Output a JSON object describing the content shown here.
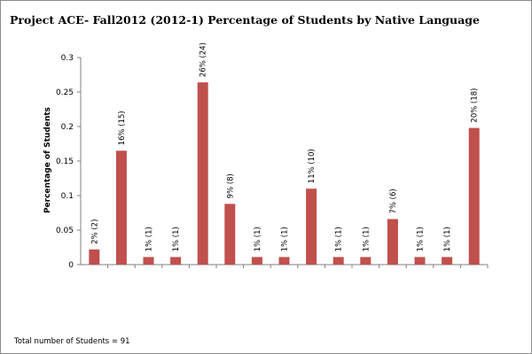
{
  "chart_data": {
    "type": "bar",
    "title": "Project ACE- Fall2012 (2012-1) Percentage of Students by Native Language",
    "xlabel": "",
    "ylabel": "Percentage of Students",
    "ylim": [
      0,
      0.3
    ],
    "yticks": [
      0,
      0.05,
      0.1,
      0.15,
      0.2,
      0.25,
      0.3
    ],
    "ytick_labels": [
      "0",
      "0.05",
      "0.1",
      "0.15",
      "0.2",
      "0.25",
      "0.3"
    ],
    "values": [
      0.022,
      0.165,
      0.011,
      0.011,
      0.264,
      0.088,
      0.011,
      0.011,
      0.11,
      0.011,
      0.011,
      0.066,
      0.011,
      0.011,
      0.198
    ],
    "data_labels": [
      "2% (2)",
      "16% (15)",
      "1% (1)",
      "1% (1)",
      "26% (24)",
      "9% (8)",
      "1% (1)",
      "1% (1)",
      "11% (10)",
      "1% (1)",
      "1% (1)",
      "7% (6)",
      "1% (1)",
      "1% (1)",
      "20% (18)"
    ],
    "bar_color": "#c0504d",
    "grid": false,
    "legend": "none",
    "footnote": "Total number of Students = 91"
  }
}
